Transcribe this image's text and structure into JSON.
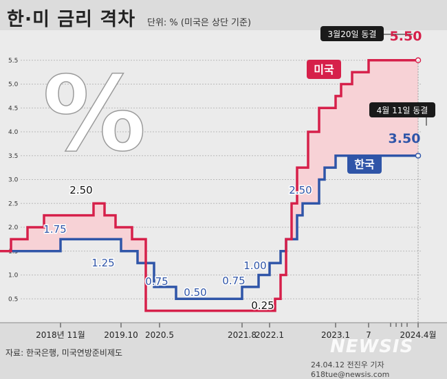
{
  "title": "한·미 금리 격차",
  "unit_note": "단위: % (미국은 상단 기준)",
  "source": "자료: 한국은행, 미국연방준비제도",
  "credit": "24.04.12 전진우 기자 618tue@newsis.com",
  "watermark": "NEWSIS",
  "percent_symbol": "%",
  "colors": {
    "us": "#d6204a",
    "korea": "#2f55a8",
    "gap_fill": "#f7d2d6",
    "background": "#dcdcdc"
  },
  "chart_data": {
    "type": "line",
    "step": true,
    "ylim": [
      0,
      5.75
    ],
    "y_ticks": [
      0.5,
      1.0,
      1.5,
      2.0,
      2.5,
      3.0,
      3.5,
      4.0,
      4.5,
      5.0,
      5.5
    ],
    "y_tick_labels": [
      "0.5",
      "1.0",
      "1.5",
      "2.0",
      "2.5",
      "3.0",
      "3.5",
      "4.0",
      "4.5",
      "5.0",
      "5.5"
    ],
    "x_ticks": [
      {
        "t": 11,
        "label": "2018년 11월"
      },
      {
        "t": 22,
        "label": "2019.10"
      },
      {
        "t": 29,
        "label": "2020.5"
      },
      {
        "t": 44,
        "label": "2021.8"
      },
      {
        "t": 49,
        "label": "2022.1"
      },
      {
        "t": 61,
        "label": "2023.1"
      },
      {
        "t": 67,
        "label": "7"
      },
      {
        "t": 76,
        "label": "2024.4월"
      }
    ],
    "minor_ticks": [
      71,
      72,
      73,
      74
    ],
    "grid": true,
    "series": [
      {
        "name": "미국",
        "color": "#d6204a",
        "x": [
          0,
          2,
          5,
          8,
          17,
          19,
          21,
          24,
          26,
          26.5,
          39,
          48,
          49,
          50,
          51,
          52,
          53,
          54,
          56,
          58,
          59,
          61,
          62,
          63,
          64,
          67,
          76
        ],
        "y": [
          1.5,
          1.75,
          2.0,
          2.25,
          2.5,
          2.25,
          2.0,
          1.75,
          1.75,
          0.25,
          0.25,
          0.25,
          0.25,
          0.5,
          1.0,
          1.75,
          2.5,
          3.25,
          4.0,
          4.5,
          4.5,
          4.75,
          5.0,
          5.0,
          5.25,
          5.5,
          5.5
        ]
      },
      {
        "name": "한국",
        "color": "#2f55a8",
        "x": [
          0,
          11,
          15,
          22,
          25,
          28,
          32,
          44,
          47,
          49,
          51,
          52,
          54,
          55,
          57,
          58,
          59,
          61,
          76
        ],
        "y": [
          1.5,
          1.75,
          1.75,
          1.5,
          1.25,
          0.75,
          0.5,
          0.75,
          1.0,
          1.25,
          1.5,
          1.75,
          2.25,
          2.5,
          2.5,
          3.0,
          3.25,
          3.5,
          3.5
        ]
      }
    ],
    "value_labels": [
      {
        "text": "1.75",
        "series": "한국"
      },
      {
        "text": "2.50",
        "series": "미국"
      },
      {
        "text": "1.25",
        "series": "한국"
      },
      {
        "text": "0.75",
        "series": "한국"
      },
      {
        "text": "0.50",
        "series": "한국"
      },
      {
        "text": "0.75",
        "series": "한국"
      },
      {
        "text": "1.00",
        "series": "한국"
      },
      {
        "text": "0.25",
        "series": "미국"
      },
      {
        "text": "2.50",
        "series": "한국"
      }
    ],
    "end_values": {
      "us": {
        "value": "5.50",
        "note": "3월20일 동결",
        "legend": "미국"
      },
      "korea": {
        "value": "3.50",
        "note": "4월 11일 동결",
        "legend": "한국"
      }
    }
  }
}
